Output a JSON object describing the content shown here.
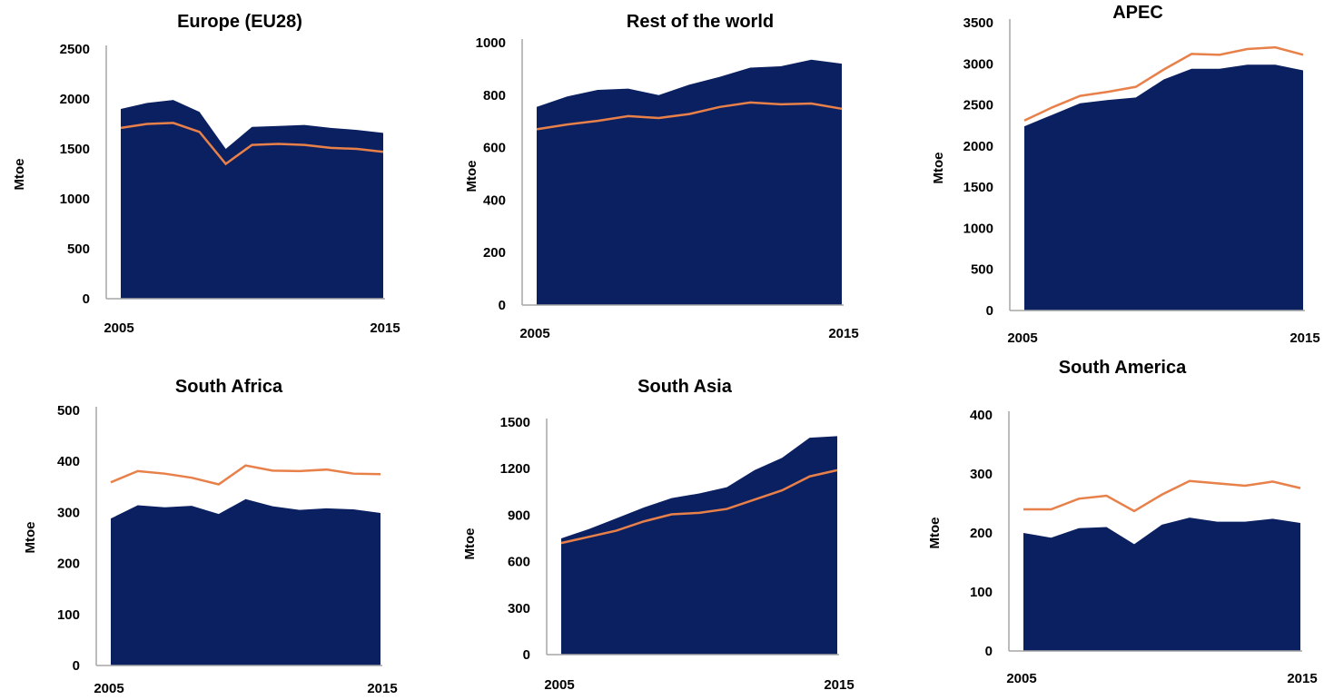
{
  "colors": {
    "area": "#0b2060",
    "line": "#e8804a",
    "axis": "#a6a6a6"
  },
  "chart_data": [
    {
      "type": "area",
      "title": "Europe (EU28)",
      "xlabel": "",
      "ylabel": "Mtoe",
      "x": [
        2005,
        2006,
        2007,
        2008,
        2009,
        2010,
        2011,
        2012,
        2013,
        2014,
        2015
      ],
      "x_tick_labels": [
        "2005",
        "2015"
      ],
      "y_ticks": [
        0,
        500,
        1000,
        1500,
        2000,
        2500
      ],
      "ylim": [
        0,
        2500
      ],
      "series": [
        {
          "type": "area",
          "values": [
            1900,
            1960,
            1990,
            1870,
            1500,
            1720,
            1730,
            1740,
            1710,
            1690,
            1660
          ]
        },
        {
          "type": "line",
          "values": [
            1710,
            1750,
            1760,
            1670,
            1350,
            1540,
            1550,
            1540,
            1510,
            1500,
            1470
          ]
        }
      ]
    },
    {
      "type": "area",
      "title": "Rest of the world",
      "xlabel": "",
      "ylabel": "Mtoe",
      "x": [
        2005,
        2006,
        2007,
        2008,
        2009,
        2010,
        2011,
        2012,
        2013,
        2014,
        2015
      ],
      "x_tick_labels": [
        "2005",
        "2015"
      ],
      "y_ticks": [
        0,
        200,
        400,
        600,
        800,
        1000
      ],
      "ylim": [
        0,
        1000
      ],
      "series": [
        {
          "type": "area",
          "values": [
            755,
            795,
            820,
            825,
            800,
            840,
            870,
            905,
            910,
            935,
            920
          ]
        },
        {
          "type": "line",
          "values": [
            670,
            688,
            702,
            720,
            713,
            728,
            755,
            772,
            765,
            768,
            748
          ]
        }
      ]
    },
    {
      "type": "area",
      "title": "APEC",
      "xlabel": "",
      "ylabel": "Mtoe",
      "x": [
        2005,
        2006,
        2007,
        2008,
        2009,
        2010,
        2011,
        2012,
        2013,
        2014,
        2015
      ],
      "x_tick_labels": [
        "2005",
        "2015"
      ],
      "y_ticks": [
        0,
        500,
        1000,
        1500,
        2000,
        2500,
        3000,
        3500
      ],
      "ylim": [
        0,
        3500
      ],
      "series": [
        {
          "type": "area",
          "values": [
            2240,
            2380,
            2520,
            2560,
            2590,
            2810,
            2940,
            2940,
            2990,
            2990,
            2920
          ]
        },
        {
          "type": "line",
          "values": [
            2310,
            2470,
            2610,
            2660,
            2720,
            2930,
            3120,
            3110,
            3180,
            3200,
            3110
          ]
        }
      ]
    },
    {
      "type": "area",
      "title": "South Africa",
      "xlabel": "",
      "ylabel": "Mtoe",
      "x": [
        2005,
        2006,
        2007,
        2008,
        2009,
        2010,
        2011,
        2012,
        2013,
        2014,
        2015
      ],
      "x_tick_labels": [
        "2005",
        "2015"
      ],
      "y_ticks": [
        0,
        100,
        200,
        300,
        400,
        500
      ],
      "ylim": [
        0,
        500
      ],
      "series": [
        {
          "type": "area",
          "values": [
            288,
            314,
            310,
            313,
            297,
            326,
            312,
            305,
            308,
            306,
            299
          ]
        },
        {
          "type": "line",
          "values": [
            359,
            381,
            376,
            368,
            355,
            392,
            382,
            381,
            384,
            376,
            375
          ]
        }
      ]
    },
    {
      "type": "area",
      "title": "South Asia",
      "xlabel": "",
      "ylabel": "Mtoe",
      "x": [
        2005,
        2006,
        2007,
        2008,
        2009,
        2010,
        2011,
        2012,
        2013,
        2014,
        2015
      ],
      "x_tick_labels": [
        "2005",
        "2015"
      ],
      "y_ticks": [
        0,
        300,
        600,
        900,
        1200,
        1500
      ],
      "ylim": [
        0,
        1500
      ],
      "series": [
        {
          "type": "area",
          "values": [
            750,
            810,
            880,
            950,
            1010,
            1040,
            1080,
            1190,
            1270,
            1400,
            1410
          ]
        },
        {
          "type": "line",
          "values": [
            720,
            760,
            800,
            860,
            905,
            915,
            940,
            1000,
            1060,
            1150,
            1190
          ]
        }
      ]
    },
    {
      "type": "area",
      "title": "South America",
      "xlabel": "",
      "ylabel": "Mtoe",
      "x": [
        2005,
        2006,
        2007,
        2008,
        2009,
        2010,
        2011,
        2012,
        2013,
        2014,
        2015
      ],
      "x_tick_labels": [
        "2005",
        "2015"
      ],
      "y_ticks": [
        0,
        100,
        200,
        300,
        400
      ],
      "ylim": [
        0,
        400
      ],
      "series": [
        {
          "type": "area",
          "values": [
            200,
            192,
            208,
            210,
            181,
            214,
            226,
            219,
            219,
            224,
            217
          ]
        },
        {
          "type": "line",
          "values": [
            240,
            240,
            258,
            263,
            237,
            265,
            288,
            284,
            280,
            287,
            276
          ]
        }
      ]
    }
  ]
}
